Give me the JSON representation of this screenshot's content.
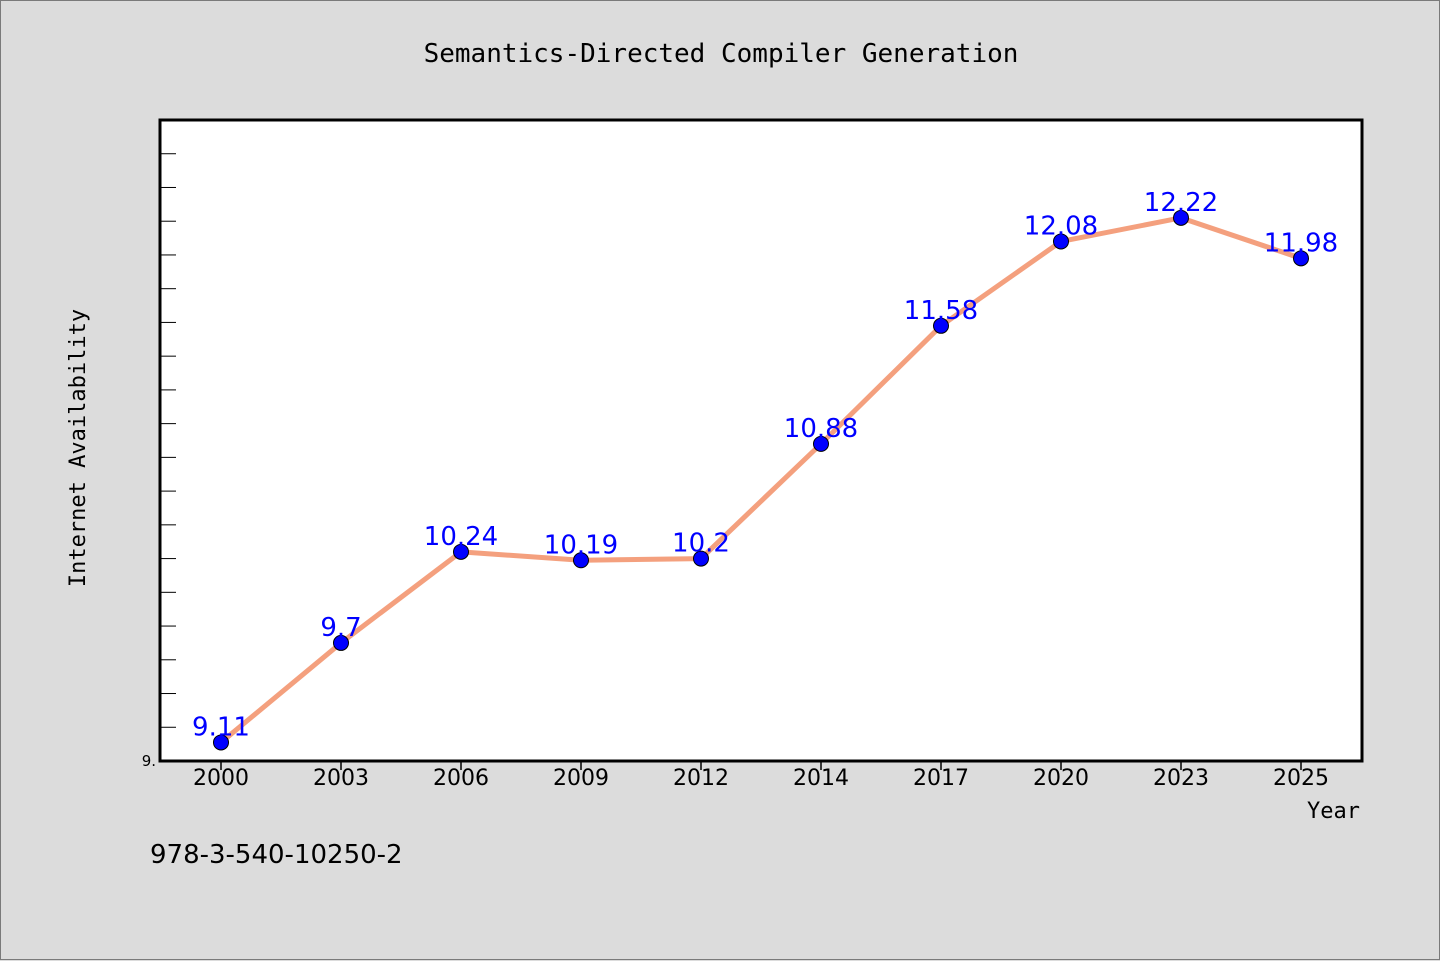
{
  "chart_data": {
    "type": "line",
    "title": "Semantics-Directed Compiler Generation",
    "xlabel": "Year",
    "ylabel": "Internet Availability",
    "categories": [
      "2000",
      "2003",
      "2006",
      "2009",
      "2012",
      "2014",
      "2017",
      "2020",
      "2023",
      "2025"
    ],
    "series": [
      {
        "values": [
          9.11,
          9.7,
          10.24,
          10.19,
          10.2,
          10.88,
          11.58,
          12.08,
          12.22,
          11.98
        ],
        "labels": [
          "9.11",
          "9.7",
          "10.24",
          "10.19",
          "10.2",
          "10.88",
          "11.58",
          "12.08",
          "12.22",
          "11.98"
        ]
      }
    ],
    "ylim": [
      9.0,
      12.8
    ],
    "yticks_labeled": [
      "9."
    ],
    "line_color": "#f4a07e",
    "marker_color": "#0000ff",
    "label_color": "#0000ff",
    "grid": false,
    "legend": "none"
  },
  "footer": {
    "text": "978-3-540-10250-2"
  }
}
